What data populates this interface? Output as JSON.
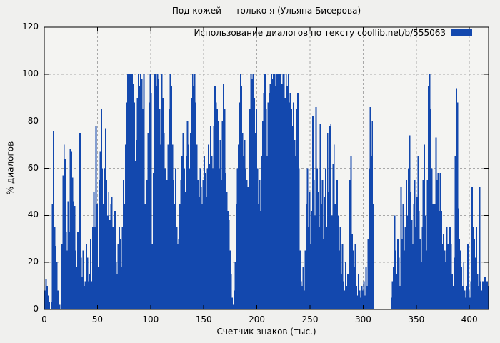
{
  "title": "Под кожей — только я (Ульяна Бисерова)",
  "legend": {
    "label": "Использование диалогов по тексту  coollib.net/b/555063",
    "swatch_color": "#1348ae"
  },
  "axes": {
    "x": {
      "label": "Счетчик знаков (тыс.)",
      "ticks": [
        0,
        50,
        100,
        150,
        200,
        250,
        300,
        350,
        400
      ]
    },
    "y": {
      "label": "% диалогов",
      "ticks": [
        0,
        20,
        40,
        60,
        80,
        100,
        120
      ]
    }
  },
  "colors": {
    "bar": "#1348ae",
    "background": "#f0f0ee",
    "plot_background": "#f4f4f2",
    "grid": "#a8a8a8",
    "frame": "#000000"
  },
  "chart_data": {
    "type": "bar",
    "title": "Под кожей — только я (Ульяна Бисерова)",
    "xlabel": "Счетчик знаков (тыс.)",
    "ylabel": "% диалогов",
    "xlim": [
      0,
      418
    ],
    "ylim": [
      0,
      120
    ],
    "grid": true,
    "legend_position": "top-right",
    "x_start": 0,
    "x_step": 1,
    "series": [
      {
        "name": "Использование диалогов по тексту  coollib.net/b/555063",
        "values": [
          8,
          13,
          10,
          6,
          3,
          0,
          3,
          45,
          76,
          35,
          27,
          20,
          8,
          5,
          2,
          0,
          28,
          57,
          70,
          64,
          33,
          25,
          46,
          33,
          68,
          67,
          56,
          46,
          44,
          25,
          18,
          33,
          8,
          75,
          22,
          14,
          25,
          10,
          12,
          28,
          22,
          12,
          15,
          30,
          12,
          35,
          50,
          35,
          78,
          45,
          18,
          55,
          67,
          85,
          60,
          45,
          60,
          77,
          55,
          40,
          50,
          38,
          45,
          48,
          35,
          25,
          42,
          20,
          15,
          28,
          35,
          30,
          18,
          35,
          55,
          45,
          70,
          88,
          100,
          95,
          100,
          92,
          100,
          96,
          88,
          63,
          72,
          90,
          100,
          95,
          100,
          98,
          85,
          100,
          45,
          38,
          55,
          75,
          88,
          100,
          92,
          28,
          58,
          100,
          100,
          95,
          100,
          98,
          85,
          70,
          100,
          90,
          75,
          60,
          45,
          55,
          70,
          85,
          100,
          95,
          70,
          55,
          45,
          60,
          35,
          28,
          30,
          45,
          55,
          65,
          75,
          60,
          50,
          65,
          80,
          70,
          60,
          75,
          90,
          100,
          95,
          100,
          88,
          70,
          55,
          48,
          60,
          52,
          45,
          55,
          65,
          58,
          48,
          60,
          70,
          62,
          78,
          65,
          60,
          78,
          95,
          88,
          85,
          80,
          60,
          72,
          55,
          80,
          96,
          85,
          58,
          50,
          42,
          38,
          25,
          15,
          5,
          2,
          8,
          20,
          45,
          60,
          70,
          88,
          100,
          95,
          75,
          65,
          72,
          60,
          55,
          52,
          48,
          85,
          100,
          98,
          100,
          90,
          75,
          85,
          60,
          45,
          55,
          42,
          65,
          80,
          92,
          100,
          85,
          65,
          88,
          92,
          96,
          100,
          98,
          100,
          100,
          95,
          100,
          100,
          92,
          100,
          100,
          96,
          100,
          100,
          90,
          100,
          95,
          100,
          88,
          92,
          85,
          78,
          88,
          72,
          65,
          85,
          92,
          60,
          25,
          12,
          10,
          18,
          8,
          25,
          45,
          60,
          35,
          50,
          28,
          42,
          82,
          55,
          40,
          86,
          60,
          50,
          35,
          79,
          45,
          55,
          30,
          48,
          60,
          35,
          75,
          50,
          78,
          79,
          40,
          62,
          70,
          45,
          30,
          55,
          40,
          25,
          35,
          15,
          28,
          12,
          8,
          20,
          10,
          15,
          8,
          55,
          65,
          32,
          25,
          18,
          28,
          10,
          6,
          15,
          8,
          5,
          10,
          8,
          12,
          6,
          18,
          10,
          30,
          60,
          86,
          65,
          80,
          45,
          0,
          0,
          0,
          0,
          0,
          0,
          0,
          0,
          0,
          0,
          0,
          0,
          0,
          0,
          0,
          0,
          5,
          12,
          18,
          40,
          25,
          15,
          30,
          22,
          10,
          52,
          30,
          45,
          25,
          35,
          55,
          40,
          60,
          74,
          50,
          38,
          28,
          45,
          55,
          35,
          48,
          65,
          42,
          30,
          20,
          35,
          55,
          70,
          40,
          25,
          55,
          95,
          100,
          85,
          60,
          45,
          40,
          45,
          73,
          55,
          58,
          42,
          58,
          42,
          28,
          32,
          25,
          20,
          35,
          28,
          18,
          35,
          28,
          15,
          10,
          22,
          65,
          94,
          88,
          43,
          30,
          25,
          18,
          10,
          20,
          8,
          5,
          10,
          28,
          8,
          5,
          12,
          52,
          35,
          30,
          22,
          35,
          15,
          10,
          52,
          12,
          8,
          12,
          10,
          14,
          8,
          12,
          10
        ]
      }
    ]
  }
}
